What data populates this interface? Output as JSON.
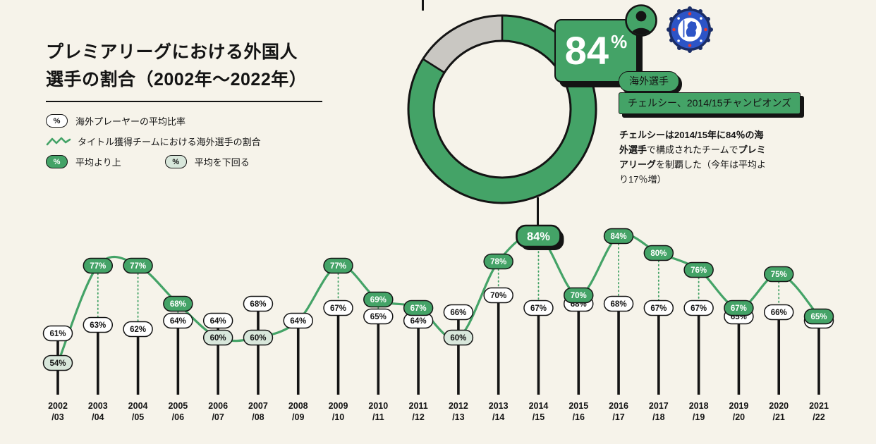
{
  "header": {
    "title_line1": "プレミアリーグにおける外国人",
    "title_line2": "選手の割合（2002年〜2022年）"
  },
  "legend": {
    "percent_symbol": "%",
    "avg_label": "海外プレーヤーの平均比率",
    "winner_label": "タイトル獲得チームにおける海外選手の割合",
    "above_label": "平均より上",
    "below_label": "平均を下回る"
  },
  "donut": {
    "value": 84
  },
  "highlight": {
    "value": "84",
    "unit": "%",
    "tag_player": "海外選手",
    "tag_team": "チェルシー、2014/15チャンピオンズ",
    "description_segments": [
      {
        "text": "チェルシーは2014/15年に",
        "bold": true
      },
      {
        "text": "84％の海外選手",
        "bold": true
      },
      {
        "text": "で構成されたチームで",
        "bold": false
      },
      {
        "text": "プレミアリーグ",
        "bold": true
      },
      {
        "text": "を制覇した（今年は平均より17％増）",
        "bold": false
      }
    ]
  },
  "chart_data": {
    "type": "line",
    "title": "プレミアリーグにおける外国人選手の割合（2002年〜2022年）",
    "unit": "%",
    "categories": [
      "2002/03",
      "2003/04",
      "2004/05",
      "2005/06",
      "2006/07",
      "2007/08",
      "2008/09",
      "2009/10",
      "2010/11",
      "2011/12",
      "2012/13",
      "2013/14",
      "2014/15",
      "2015/16",
      "2016/17",
      "2017/18",
      "2018/19",
      "2019/20",
      "2020/21",
      "2021/22"
    ],
    "series": [
      {
        "name": "タイトル獲得チームにおける海外選手の割合",
        "values": [
          54,
          77,
          77,
          68,
          60,
          60,
          64,
          77,
          69,
          67,
          60,
          78,
          84,
          70,
          84,
          80,
          76,
          67,
          75,
          65
        ]
      },
      {
        "name": "海外プレーヤーの平均比率",
        "values": [
          61,
          63,
          62,
          64,
          64,
          68,
          64,
          67,
          65,
          64,
          66,
          70,
          67,
          68,
          68,
          67,
          67,
          65,
          66,
          64
        ]
      }
    ],
    "highlight_index": 12,
    "highlight_label": "チェルシー、2014/15チャンピオンズ",
    "ylim": [
      50,
      90
    ],
    "grid": false,
    "legend_position": "top-left",
    "colors": {
      "green": "#44a367",
      "pale": "#d8e7db",
      "gray": "#c9c7c2",
      "ink": "#141414",
      "white": "#ffffff",
      "background": "#f6f3ea",
      "crest_navy": "#1b2d66",
      "crest_blue": "#2d54c6",
      "crest_red": "#e03a35"
    }
  }
}
